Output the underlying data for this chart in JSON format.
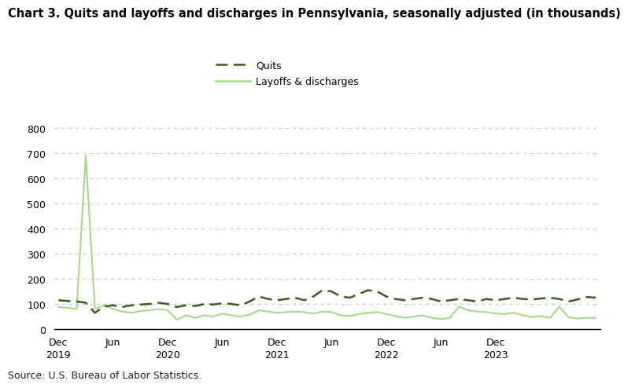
{
  "title": "Chart 3. Quits and layoffs and discharges in Pennsylvania, seasonally adjusted (in thousands)",
  "source": "Source: U.S. Bureau of Labor Statistics.",
  "quits_color": "#3a5f1e",
  "layoffs_color": "#a8d88a",
  "background_color": "#ffffff",
  "ylim": [
    0,
    800
  ],
  "yticks": [
    0,
    100,
    200,
    300,
    400,
    500,
    600,
    700,
    800
  ],
  "legend_labels": [
    "Quits",
    "Layoffs & discharges"
  ],
  "quits": [
    115,
    112,
    110,
    105,
    65,
    90,
    95,
    88,
    95,
    98,
    100,
    105,
    100,
    88,
    95,
    92,
    100,
    98,
    103,
    100,
    95,
    110,
    130,
    120,
    115,
    120,
    125,
    115,
    130,
    155,
    150,
    130,
    125,
    140,
    155,
    150,
    130,
    120,
    115,
    120,
    125,
    120,
    110,
    115,
    120,
    115,
    110,
    120,
    115,
    120,
    125,
    120,
    118,
    122,
    125,
    120,
    110,
    118,
    128,
    125
  ],
  "layoffs": [
    88,
    85,
    80,
    690,
    80,
    95,
    80,
    70,
    65,
    72,
    75,
    80,
    75,
    38,
    55,
    45,
    55,
    50,
    62,
    55,
    50,
    58,
    75,
    70,
    65,
    68,
    70,
    68,
    62,
    70,
    68,
    55,
    52,
    60,
    65,
    68,
    60,
    52,
    45,
    50,
    55,
    45,
    40,
    45,
    90,
    75,
    70,
    68,
    62,
    60,
    65,
    55,
    48,
    52,
    45,
    90,
    48,
    42,
    45,
    45
  ],
  "n_points": 60,
  "x_tick_positions": [
    0,
    6,
    12,
    18,
    24,
    30,
    36,
    42,
    48,
    54,
    59
  ],
  "x_tick_labels": [
    "Dec\n2019",
    "Jun",
    "Dec\n2020",
    "Jun",
    "Dec\n2021",
    "Jun",
    "Dec\n2022",
    "Jun",
    "Dec\n2023",
    "",
    ""
  ],
  "grid_color": "#c8c8c8",
  "title_fontsize": 10.5,
  "tick_fontsize": 9,
  "source_fontsize": 9
}
